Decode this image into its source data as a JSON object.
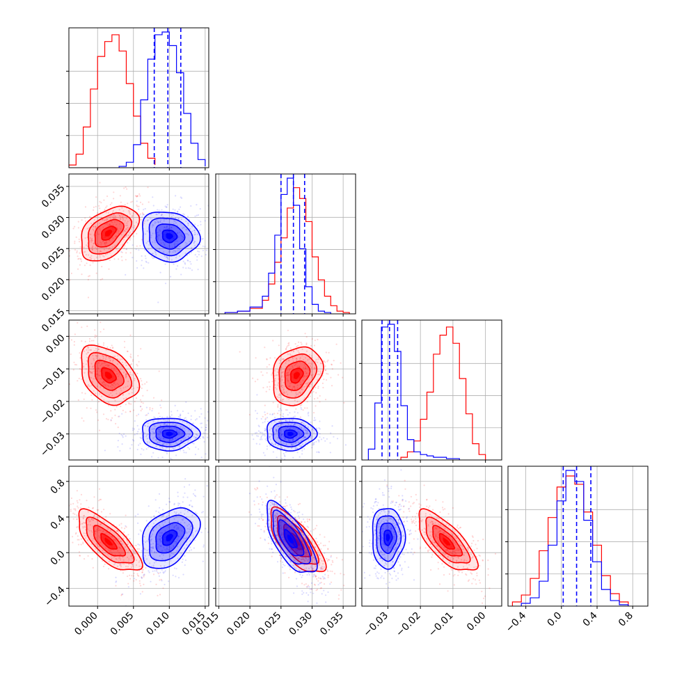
{
  "chart_data": {
    "type": "corner",
    "title": "",
    "grid": true,
    "parameters": [
      "",
      "",
      "",
      ""
    ],
    "colors": {
      "red": "#ff0000",
      "blue": "#0000ff"
    },
    "series": [
      {
        "name": "",
        "color": "#0000ff",
        "quantiles_16_50_84": [
          [
            0.0079,
            0.0098,
            0.0116
          ],
          [
            0.025,
            0.027,
            0.0288
          ],
          [
            -0.0318,
            -0.0295,
            -0.027
          ],
          [
            0.02,
            0.17,
            0.33
          ]
        ]
      },
      {
        "name": "",
        "color": "#ff0000"
      }
    ],
    "axes": {
      "p0": {
        "range": [
          -0.004,
          0.0155
        ],
        "ticks": [
          0.0,
          0.005,
          0.01,
          0.015
        ],
        "tick_labels": [
          "0.000",
          "0.005",
          "0.010",
          "0.015"
        ]
      },
      "p1": {
        "range": [
          0.0145,
          0.037
        ],
        "ticks": [
          0.015,
          0.02,
          0.025,
          0.03,
          0.035
        ],
        "tick_labels": [
          "0.015",
          "0.020",
          "0.025",
          "0.030",
          "0.035"
        ]
      },
      "p2": {
        "range": [
          -0.038,
          0.005
        ],
        "ticks": [
          -0.03,
          -0.02,
          -0.01,
          0.0
        ],
        "tick_labels": [
          "−0.03",
          "−0.02",
          "−0.01",
          "0.00"
        ]
      },
      "p3": {
        "range": [
          -0.6,
          0.97
        ],
        "ticks": [
          -0.4,
          0.0,
          0.4,
          0.8
        ],
        "tick_labels": [
          "−0.4",
          "0.0",
          "0.4",
          "0.8"
        ]
      }
    },
    "histograms_1d": [
      {
        "param": 0,
        "red": {
          "edges": [
            -0.004,
            -0.003,
            -0.002,
            -0.001,
            0.0,
            0.001,
            0.002,
            0.003,
            0.004,
            0.005,
            0.006,
            0.007,
            0.008
          ],
          "counts": [
            0.02,
            0.1,
            0.3,
            0.58,
            0.82,
            0.93,
            0.98,
            0.86,
            0.62,
            0.38,
            0.18,
            0.07,
            0.02
          ]
        },
        "blue": {
          "edges": [
            0.003,
            0.004,
            0.005,
            0.006,
            0.007,
            0.008,
            0.009,
            0.01,
            0.011,
            0.012,
            0.013,
            0.014,
            0.015
          ],
          "counts": [
            0.01,
            0.04,
            0.17,
            0.5,
            0.8,
            0.98,
            1.0,
            0.9,
            0.7,
            0.4,
            0.18,
            0.06,
            0.01
          ]
        }
      },
      {
        "param": 1,
        "red": {
          "edges": [
            0.016,
            0.018,
            0.02,
            0.022,
            0.023,
            0.024,
            0.025,
            0.026,
            0.027,
            0.028,
            0.029,
            0.03,
            0.031,
            0.032,
            0.033,
            0.034,
            0.035,
            0.036
          ],
          "counts": [
            0.01,
            0.02,
            0.04,
            0.1,
            0.22,
            0.38,
            0.56,
            0.78,
            0.93,
            0.85,
            0.68,
            0.42,
            0.25,
            0.13,
            0.06,
            0.02,
            0.01
          ]
        },
        "blue": {
          "edges": [
            0.016,
            0.018,
            0.02,
            0.022,
            0.023,
            0.024,
            0.025,
            0.026,
            0.027,
            0.028,
            0.029,
            0.03,
            0.031,
            0.032,
            0.033
          ],
          "counts": [
            0.01,
            0.02,
            0.05,
            0.13,
            0.3,
            0.58,
            0.88,
            1.0,
            0.8,
            0.48,
            0.2,
            0.07,
            0.02,
            0.01
          ]
        }
      },
      {
        "param": 2,
        "red": {
          "edges": [
            -0.026,
            -0.024,
            -0.022,
            -0.02,
            -0.018,
            -0.016,
            -0.014,
            -0.012,
            -0.01,
            -0.008,
            -0.006,
            -0.004,
            -0.002,
            0.0
          ],
          "counts": [
            0.02,
            0.06,
            0.14,
            0.3,
            0.5,
            0.78,
            0.92,
            0.98,
            0.86,
            0.6,
            0.34,
            0.12,
            0.04
          ]
        },
        "blue": {
          "edges": [
            -0.036,
            -0.034,
            -0.032,
            -0.03,
            -0.028,
            -0.026,
            -0.024,
            -0.022,
            -0.02,
            -0.018,
            -0.016,
            -0.014,
            -0.012,
            -0.01,
            -0.008
          ],
          "counts": [
            0.08,
            0.42,
            0.98,
            1.0,
            0.8,
            0.4,
            0.15,
            0.06,
            0.04,
            0.03,
            0.02,
            0.02,
            0.01,
            0.01
          ]
        }
      },
      {
        "param": 3,
        "red": {
          "edges": [
            -0.55,
            -0.45,
            -0.35,
            -0.25,
            -0.15,
            -0.05,
            0.05,
            0.15,
            0.25,
            0.35,
            0.45,
            0.55,
            0.65,
            0.75
          ],
          "counts": [
            0.03,
            0.08,
            0.2,
            0.4,
            0.64,
            0.86,
            0.94,
            0.88,
            0.68,
            0.44,
            0.22,
            0.09,
            0.03
          ]
        },
        "blue": {
          "edges": [
            -0.45,
            -0.35,
            -0.25,
            -0.15,
            -0.05,
            0.05,
            0.15,
            0.25,
            0.35,
            0.45,
            0.55,
            0.65,
            0.75
          ],
          "counts": [
            0.02,
            0.06,
            0.18,
            0.44,
            0.76,
            0.98,
            0.9,
            0.62,
            0.32,
            0.12,
            0.04,
            0.01
          ]
        }
      }
    ],
    "joint_2d": [
      {
        "params": [
          0,
          1
        ],
        "blue": {
          "center": [
            0.01,
            0.027
          ],
          "sigma": [
            0.002,
            0.002
          ],
          "rho": -0.1
        },
        "red": {
          "center": [
            0.0015,
            0.0275
          ],
          "sigma": [
            0.002,
            0.0022
          ],
          "rho": 0.45
        }
      },
      {
        "params": [
          0,
          2
        ],
        "blue": {
          "center": [
            0.01,
            -0.03
          ],
          "sigma": [
            0.002,
            0.0025
          ],
          "rho": 0.0
        },
        "red": {
          "center": [
            0.0015,
            -0.012
          ],
          "sigma": [
            0.002,
            0.0045
          ],
          "rho": -0.35
        }
      },
      {
        "params": [
          1,
          2
        ],
        "blue": {
          "center": [
            0.0265,
            -0.03
          ],
          "sigma": [
            0.002,
            0.0025
          ],
          "rho": 0.0
        },
        "red": {
          "center": [
            0.0275,
            -0.012
          ],
          "sigma": [
            0.002,
            0.0045
          ],
          "rho": 0.25
        }
      },
      {
        "params": [
          0,
          3
        ],
        "blue": {
          "center": [
            0.01,
            0.17
          ],
          "sigma": [
            0.002,
            0.17
          ],
          "rho": 0.4
        },
        "red": {
          "center": [
            0.0015,
            0.12
          ],
          "sigma": [
            0.0022,
            0.17
          ],
          "rho": -0.72
        }
      },
      {
        "params": [
          1,
          3
        ],
        "blue": {
          "center": [
            0.0265,
            0.15
          ],
          "sigma": [
            0.002,
            0.2
          ],
          "rho": -0.7
        },
        "red": {
          "center": [
            0.0275,
            0.12
          ],
          "sigma": [
            0.0022,
            0.18
          ],
          "rho": -0.72
        }
      },
      {
        "params": [
          2,
          3
        ],
        "blue": {
          "center": [
            -0.03,
            0.17
          ],
          "sigma": [
            0.0025,
            0.17
          ],
          "rho": 0.0
        },
        "red": {
          "center": [
            -0.012,
            0.12
          ],
          "sigma": [
            0.0045,
            0.17
          ],
          "rho": -0.72
        }
      }
    ]
  }
}
